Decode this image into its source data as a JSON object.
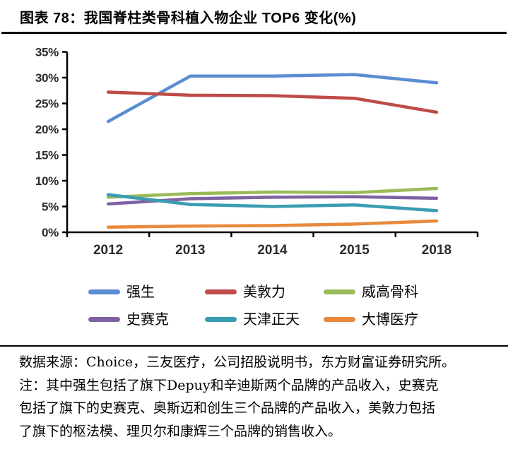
{
  "header": {
    "title": "图表 78：我国脊柱类骨科植入物企业 TOP6 变化(%)"
  },
  "chart_data": {
    "type": "line",
    "title": "我国脊柱类骨科植入物企业 TOP6 变化(%)",
    "categories": [
      "2012",
      "2013",
      "2014",
      "2015",
      "2018"
    ],
    "series": [
      {
        "name": "强生",
        "color": "#5B8DD2",
        "values": [
          21.5,
          30.3,
          30.3,
          30.6,
          29.0
        ]
      },
      {
        "name": "美敦力",
        "color": "#BE4B48",
        "values": [
          27.2,
          26.6,
          26.5,
          26.0,
          23.3
        ]
      },
      {
        "name": "威高骨科",
        "color": "#9ABB59",
        "values": [
          6.8,
          7.5,
          7.8,
          7.7,
          8.5
        ]
      },
      {
        "name": "史赛克",
        "color": "#7E62A1",
        "values": [
          5.5,
          6.5,
          6.8,
          6.9,
          6.6
        ]
      },
      {
        "name": "天津正天",
        "color": "#3A9DB1",
        "values": [
          7.3,
          5.4,
          5.0,
          5.3,
          4.2
        ]
      },
      {
        "name": "大博医疗",
        "color": "#E8893C",
        "values": [
          1.0,
          1.2,
          1.3,
          1.6,
          2.2
        ]
      }
    ],
    "xlabel": "",
    "ylabel": "",
    "ylim": [
      0,
      35
    ],
    "ytick_step": 5,
    "ytick_labels": [
      "0%",
      "5%",
      "10%",
      "15%",
      "20%",
      "25%",
      "30%",
      "35%"
    ],
    "grid": false,
    "legend_position": "bottom",
    "axis_color": "#000000"
  },
  "footer": {
    "source": "数据来源：Choice，三友医疗，公司招股说明书，东方财富证券研究所。",
    "note_lines": [
      "注：其中强生包括了旗下Depuy和辛迪斯两个品牌的产品收入，史赛克",
      "包括了旗下的史赛克、奥斯迈和创生三个品牌的产品收入，美敦力包括",
      "了旗下的枢法模、理贝尔和康辉三个品牌的销售收入。"
    ]
  }
}
